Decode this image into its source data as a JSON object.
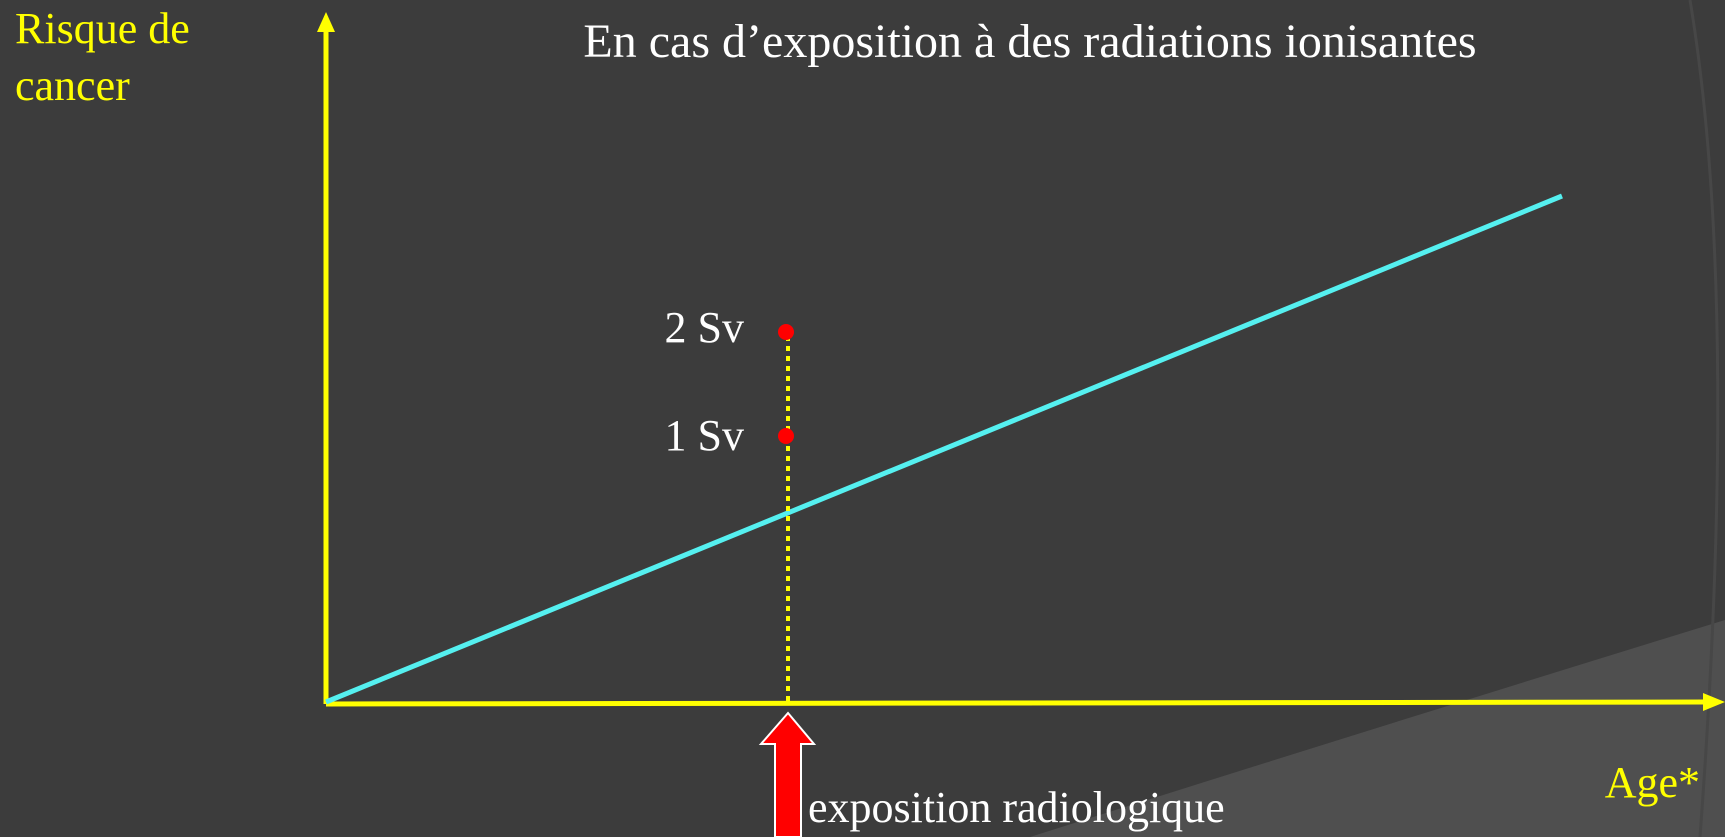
{
  "title": "En cas d’exposition à des radiations ionisantes",
  "y_axis_label": [
    "Risque de",
    "cancer"
  ],
  "x_axis_label": "Age*",
  "dose_markers": [
    {
      "label": "2 Sv"
    },
    {
      "label": "1 Sv"
    }
  ],
  "arrow_label": "exposition radiologique"
}
